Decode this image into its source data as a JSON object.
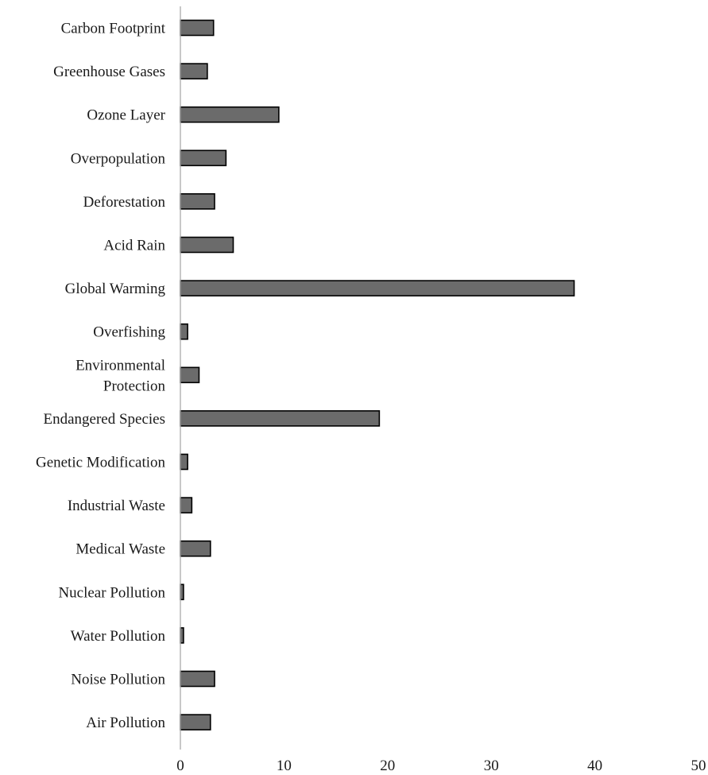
{
  "chart_data": {
    "type": "bar",
    "orientation": "horizontal",
    "title": "",
    "xlabel": "",
    "ylabel": "",
    "xlim": [
      0,
      50
    ],
    "xticks": [
      "0",
      "10",
      "20",
      "30",
      "40",
      "50"
    ],
    "grid": false,
    "legend": "none",
    "colors": {
      "bar_fill": "#6b6b6b",
      "bar_stroke": "#000000",
      "axis": "#b0b0b0"
    },
    "categories": [
      [
        "Carbon Footprint"
      ],
      [
        "Greenhouse Gases"
      ],
      [
        "Ozone Layer"
      ],
      [
        "Overpopulation"
      ],
      [
        "Deforestation"
      ],
      [
        "Acid Rain"
      ],
      [
        "Global Warming"
      ],
      [
        "Overfishing"
      ],
      [
        "Environmental",
        "Protection"
      ],
      [
        "Endangered Species"
      ],
      [
        "Genetic Modification"
      ],
      [
        "Industrial Waste"
      ],
      [
        "Medical Waste"
      ],
      [
        "Nuclear Pollution"
      ],
      [
        "Water Pollution"
      ],
      [
        "Noise Pollution"
      ],
      [
        "Air Pollution"
      ]
    ],
    "values": [
      3.2,
      2.6,
      9.5,
      4.4,
      3.3,
      5.1,
      38.0,
      0.7,
      1.8,
      19.2,
      0.7,
      1.1,
      2.9,
      0.3,
      0.3,
      3.3,
      2.9
    ]
  }
}
